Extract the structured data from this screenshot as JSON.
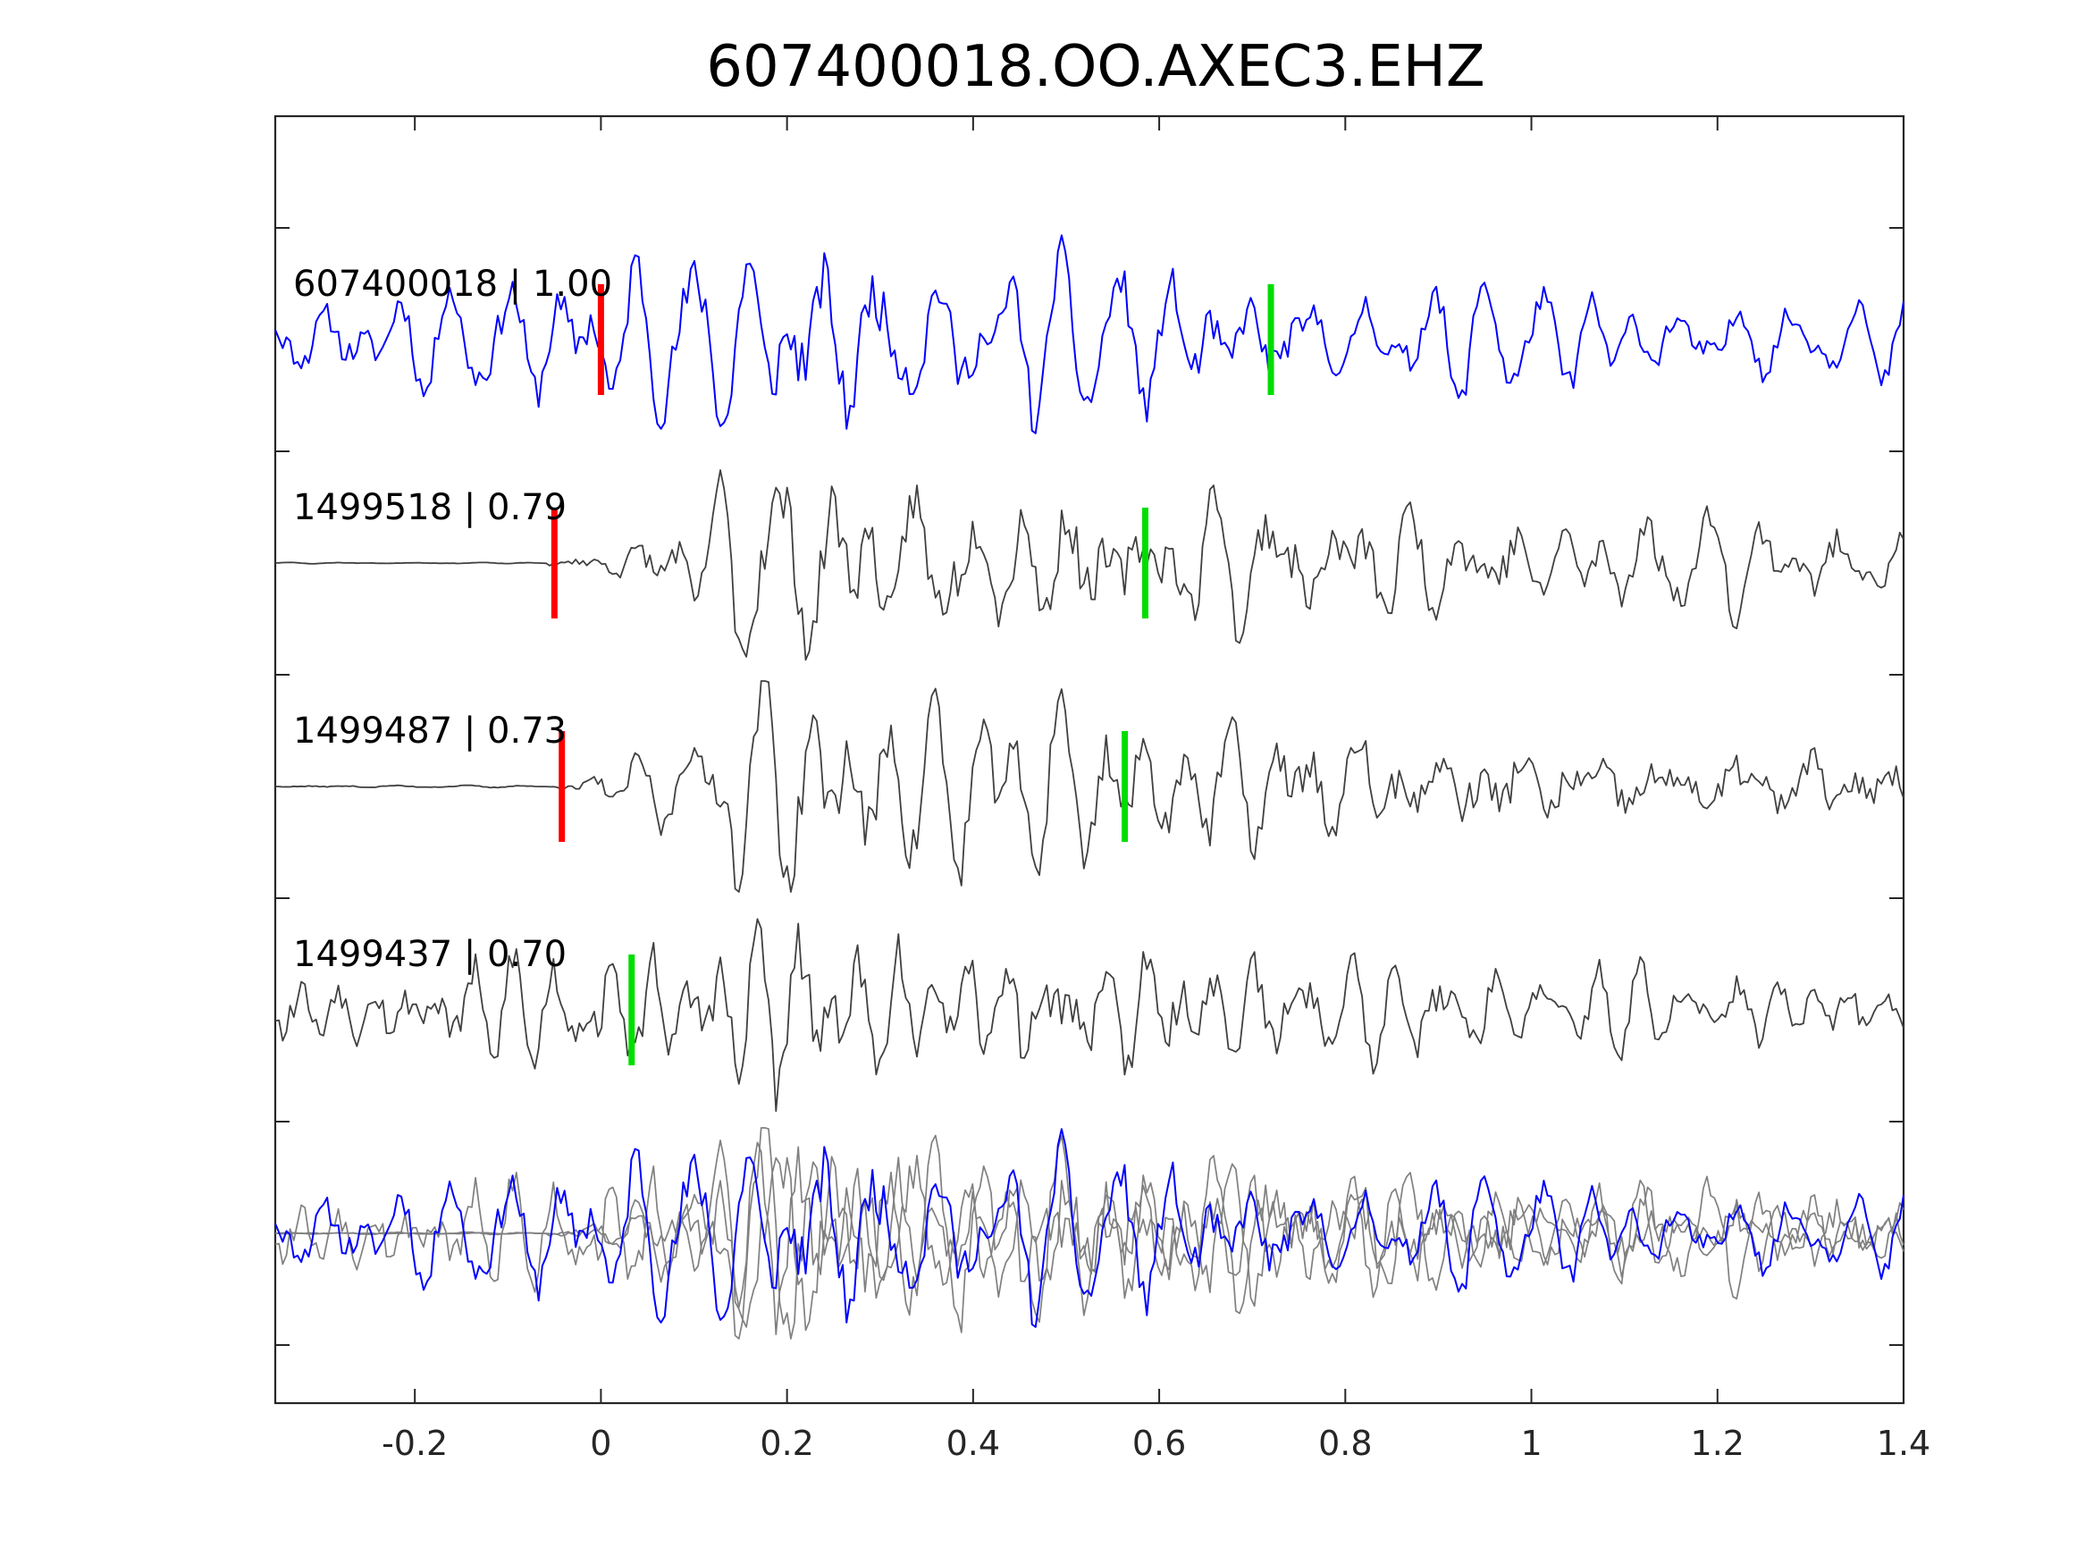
{
  "chart_data": {
    "type": "line",
    "title": "607400018.OO.AXEC3.EHZ",
    "xlabel": "",
    "ylabel": "",
    "xlim": [
      -0.35,
      1.4
    ],
    "x_ticks": [
      -0.2,
      0,
      0.2,
      0.4,
      0.6,
      0.8,
      1,
      1.2,
      1.4
    ],
    "x_tick_labels": [
      "-0.2",
      "0",
      "0.2",
      "0.4",
      "0.6",
      "0.8",
      "1",
      "1.2",
      "1.4"
    ],
    "grid": false,
    "colors": {
      "reference": "#0000ff",
      "match": "#404040",
      "overlay_match": "#808080",
      "p_pick": "#ff0000",
      "s_pick": "#00dd00",
      "axes": "#262626"
    },
    "traces": [
      {
        "label": "607400018 | 1.00",
        "color": "reference",
        "p_pick": 0.0,
        "s_pick": 0.72,
        "onset": -0.35,
        "pre_amp": 0.45,
        "peak_time": 0.1,
        "peak_amp": 1.0,
        "coda_decay": 1.2,
        "freq": 20,
        "seed": 11
      },
      {
        "label": "1499518 | 0.79",
        "color": "match",
        "p_pick": -0.05,
        "s_pick": 0.585,
        "onset": -0.06,
        "pre_amp": 0.04,
        "peak_time": 0.14,
        "peak_amp": 1.0,
        "coda_decay": 0.9,
        "freq": 17,
        "seed": 23
      },
      {
        "label": "1499487 | 0.73",
        "color": "match",
        "p_pick": -0.042,
        "s_pick": 0.563,
        "onset": -0.05,
        "pre_amp": 0.1,
        "peak_time": 0.14,
        "peak_amp": 1.0,
        "coda_decay": 0.9,
        "freq": 17,
        "seed": 37
      },
      {
        "label": "1499437 | 0.70",
        "color": "match",
        "p_pick": null,
        "s_pick": 0.033,
        "onset": -0.35,
        "pre_amp": 0.55,
        "peak_time": 0.13,
        "peak_amp": 1.0,
        "coda_decay": 1.3,
        "freq": 22,
        "seed": 53
      }
    ],
    "overlay": "all traces superimposed in bottom row"
  }
}
